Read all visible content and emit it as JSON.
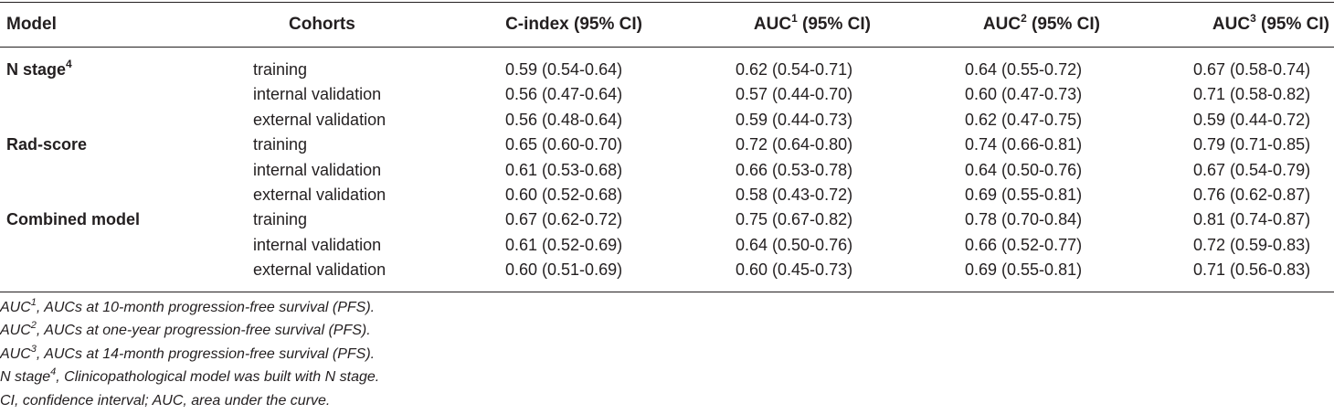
{
  "headers": {
    "model": "Model",
    "cohorts": "Cohorts",
    "cindex": "C-index (95% CI)",
    "auc1_prefix": "AUC",
    "auc1_sup": "1",
    "auc1_suffix": " (95% CI)",
    "auc2_prefix": "AUC",
    "auc2_sup": "2",
    "auc2_suffix": " (95% CI)",
    "auc3_prefix": "AUC",
    "auc3_sup": "3",
    "auc3_suffix": " (95% CI)"
  },
  "rows": [
    {
      "model": "N stage",
      "model_sup": "4",
      "cohort": "training",
      "cindex": "0.59 (0.54-0.64)",
      "auc1": "0.62 (0.54-0.71)",
      "auc2": "0.64 (0.55-0.72)",
      "auc3": "0.67 (0.58-0.74)"
    },
    {
      "model": "",
      "model_sup": "",
      "cohort": "internal validation",
      "cindex": "0.56 (0.47-0.64)",
      "auc1": "0.57 (0.44-0.70)",
      "auc2": "0.60 (0.47-0.73)",
      "auc3": "0.71 (0.58-0.82)"
    },
    {
      "model": "",
      "model_sup": "",
      "cohort": "external validation",
      "cindex": "0.56 (0.48-0.64)",
      "auc1": "0.59 (0.44-0.73)",
      "auc2": "0.62 (0.47-0.75)",
      "auc3": "0.59 (0.44-0.72)"
    },
    {
      "model": "Rad-score",
      "model_sup": "",
      "cohort": "training",
      "cindex": "0.65 (0.60-0.70)",
      "auc1": "0.72 (0.64-0.80)",
      "auc2": "0.74 (0.66-0.81)",
      "auc3": "0.79 (0.71-0.85)"
    },
    {
      "model": "",
      "model_sup": "",
      "cohort": "internal validation",
      "cindex": "0.61 (0.53-0.68)",
      "auc1": "0.66 (0.53-0.78)",
      "auc2": "0.64 (0.50-0.76)",
      "auc3": "0.67 (0.54-0.79)"
    },
    {
      "model": "",
      "model_sup": "",
      "cohort": "external validation",
      "cindex": "0.60 (0.52-0.68)",
      "auc1": "0.58 (0.43-0.72)",
      "auc2": "0.69 (0.55-0.81)",
      "auc3": "0.76 (0.62-0.87)"
    },
    {
      "model": "Combined model",
      "model_sup": "",
      "cohort": "training",
      "cindex": "0.67 (0.62-0.72)",
      "auc1": "0.75 (0.67-0.82)",
      "auc2": "0.78 (0.70-0.84)",
      "auc3": "0.81 (0.74-0.87)"
    },
    {
      "model": "",
      "model_sup": "",
      "cohort": "internal validation",
      "cindex": "0.61 (0.52-0.69)",
      "auc1": "0.64 (0.50-0.76)",
      "auc2": "0.66 (0.52-0.77)",
      "auc3": "0.72 (0.59-0.83)"
    },
    {
      "model": "",
      "model_sup": "",
      "cohort": "external validation",
      "cindex": "0.60 (0.51-0.69)",
      "auc1": "0.60 (0.45-0.73)",
      "auc2": "0.69 (0.55-0.81)",
      "auc3": "0.71 (0.56-0.83)"
    }
  ],
  "footnotes": [
    {
      "term": "AUC",
      "sup": "1",
      "text": ", AUCs at 10-month progression-free survival (PFS)."
    },
    {
      "term": "AUC",
      "sup": "2",
      "text": ", AUCs at one-year progression-free survival (PFS)."
    },
    {
      "term": "AUC",
      "sup": "3",
      "text": ", AUCs at 14-month progression-free survival (PFS)."
    },
    {
      "term": "N stage",
      "sup": "4",
      "text": ", Clinicopathological model was built with N stage."
    },
    {
      "term": "CI",
      "sup": "",
      "text": ", confidence interval; AUC, area under the curve."
    }
  ]
}
